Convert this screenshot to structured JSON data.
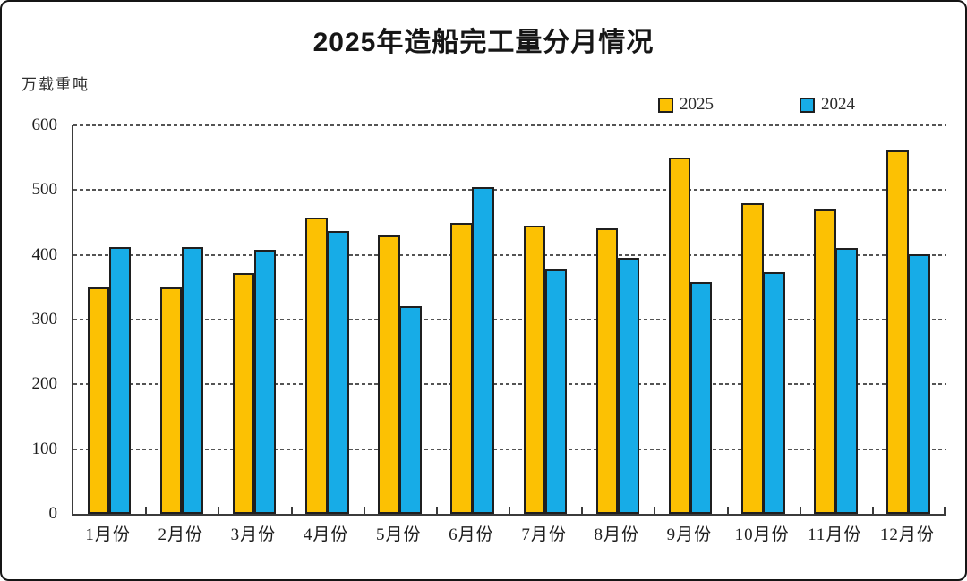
{
  "page": {
    "background_color": "#ffffff",
    "border_color": "#151515"
  },
  "chart_data": {
    "type": "bar",
    "title": "2025年造船完工量分月情况",
    "unit_label": "万载重吨",
    "categories": [
      "1月份",
      "2月份",
      "3月份",
      "4月份",
      "5月份",
      "6月份",
      "7月份",
      "8月份",
      "9月份",
      "10月份",
      "11月份",
      "12月份"
    ],
    "series": [
      {
        "name": "2025",
        "color": "#FCC103",
        "values": [
          350,
          350,
          372,
          457,
          430,
          450,
          445,
          441,
          550,
          480,
          470,
          562
        ]
      },
      {
        "name": "2024",
        "color": "#17ACE7",
        "values": [
          412,
          412,
          408,
          437,
          321,
          505,
          377,
          395,
          358,
          373,
          410,
          401
        ]
      }
    ],
    "ylim": [
      0,
      600
    ],
    "yticks": [
      600,
      500,
      400,
      300,
      200,
      100,
      0
    ],
    "grid": "dashed-horizontal",
    "legend_position": "top-right",
    "bar_border_color": "#1f1f1f",
    "gridline_color": "#545454",
    "axis_color": "#3b3b3b"
  }
}
